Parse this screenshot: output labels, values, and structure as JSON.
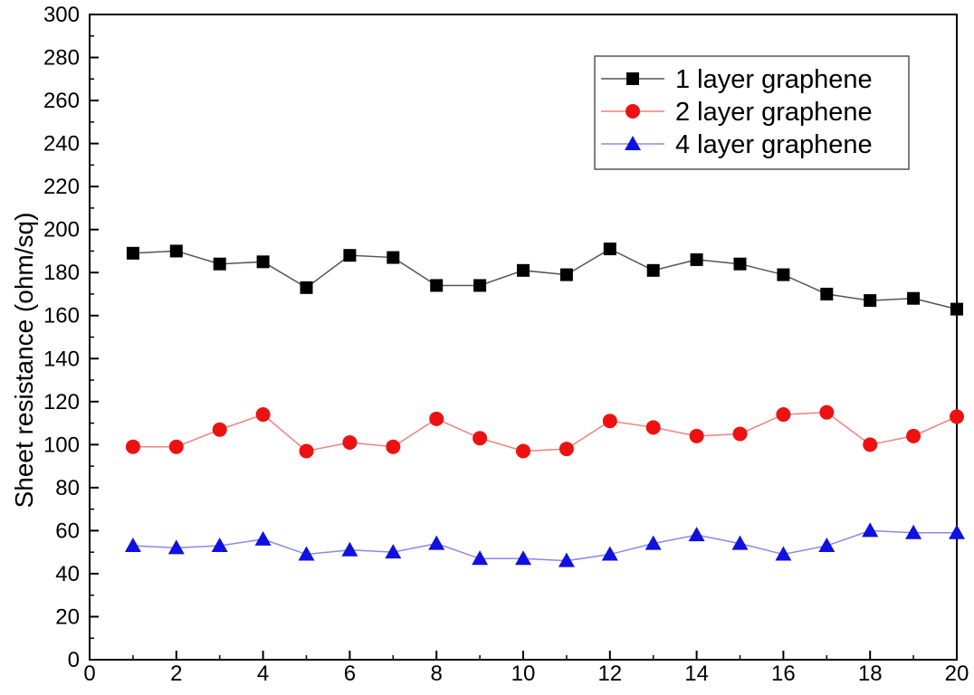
{
  "chart_data": {
    "type": "line",
    "title": "",
    "xlabel": "",
    "ylabel": "Sheet resistance (ohm/sq)",
    "xlim": [
      0,
      20
    ],
    "ylim": [
      0,
      300
    ],
    "xticks": [
      0,
      2,
      4,
      6,
      8,
      10,
      12,
      14,
      16,
      18,
      20
    ],
    "yticks": [
      0,
      20,
      40,
      60,
      80,
      100,
      120,
      140,
      160,
      180,
      200,
      220,
      240,
      260,
      280,
      300
    ],
    "grid": false,
    "legend_position": "top-right",
    "x": [
      1,
      2,
      3,
      4,
      5,
      6,
      7,
      8,
      9,
      10,
      11,
      12,
      13,
      14,
      15,
      16,
      17,
      18,
      19,
      20
    ],
    "series": [
      {
        "name": "1 layer graphene",
        "marker": "square",
        "color": "#000000",
        "line_color": "#555555",
        "values": [
          189,
          190,
          184,
          185,
          173,
          188,
          187,
          174,
          174,
          181,
          179,
          191,
          181,
          186,
          184,
          179,
          170,
          167,
          168,
          163
        ]
      },
      {
        "name": "2 layer graphene",
        "marker": "circle",
        "color": "#ee1111",
        "line_color": "#f08080",
        "values": [
          99,
          99,
          107,
          114,
          97,
          101,
          99,
          112,
          103,
          97,
          98,
          111,
          108,
          104,
          105,
          114,
          115,
          100,
          104,
          113
        ]
      },
      {
        "name": "4 layer graphene",
        "marker": "triangle",
        "color": "#1010e0",
        "line_color": "#8888ee",
        "values": [
          53,
          52,
          53,
          56,
          49,
          51,
          50,
          54,
          47,
          47,
          46,
          49,
          54,
          58,
          54,
          49,
          53,
          60,
          59,
          59
        ]
      }
    ]
  }
}
